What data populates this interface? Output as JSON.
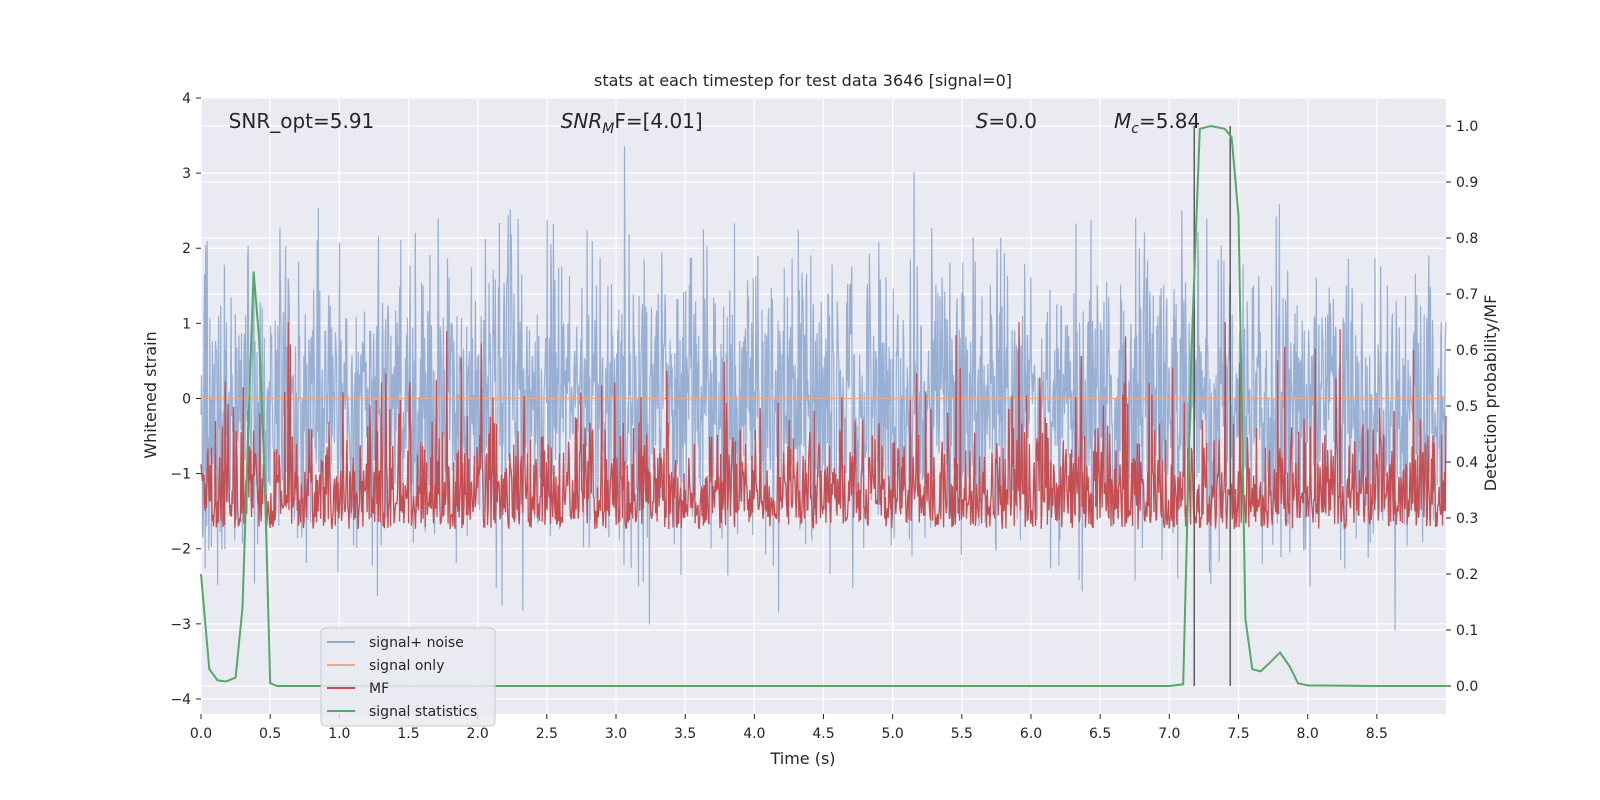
{
  "chart_data": {
    "type": "line",
    "title": "stats at each timestep for test data 3646 [signal=0]",
    "xlabel": "Time (s)",
    "ylabel_left": "Whitened strain",
    "ylabel_right": "Detection probability/MF",
    "xlim": [
      0,
      9.0
    ],
    "ylim_left": [
      -4.2,
      4
    ],
    "ylim_right": [
      -0.05,
      1.05
    ],
    "x_ticks": [
      "0.0",
      "0.5",
      "1.0",
      "1.5",
      "2.0",
      "2.5",
      "3.0",
      "3.5",
      "4.0",
      "4.5",
      "5.0",
      "5.5",
      "6.0",
      "6.5",
      "7.0",
      "7.5",
      "8.0",
      "8.5"
    ],
    "y_ticks_left": [
      "−4",
      "−3",
      "−2",
      "−1",
      "0",
      "1",
      "2",
      "3",
      "4"
    ],
    "y_ticks_right": [
      "0.0",
      "0.1",
      "0.2",
      "0.3",
      "0.4",
      "0.5",
      "0.6",
      "0.7",
      "0.8",
      "0.9",
      "1.0"
    ],
    "grid": true,
    "legend_position": "lower-left",
    "annotations": [
      {
        "text": "SNR_opt=5.91",
        "x": 0.2
      },
      {
        "text": "SNR",
        "sub": "M",
        "rest": "F=[4.01]",
        "x": 2.6
      },
      {
        "text": "S",
        "rest": "=0.0",
        "x": 5.6
      },
      {
        "text": "M",
        "sub": "c",
        "rest": "=5.84",
        "x": 6.6
      }
    ],
    "annotation_y": 3.6,
    "vertical_lines_x": [
      7.18,
      7.44
    ],
    "series": [
      {
        "name": "signal+ noise",
        "color": "#8fa8d0",
        "kind": "noise",
        "band": [
          -1.8,
          1.9
        ],
        "peak": [
          -3.8,
          3.6
        ]
      },
      {
        "name": "signal only",
        "color": "#e8a98a",
        "kind": "flat",
        "value": 0.0
      },
      {
        "name": "MF",
        "color": "#c44e52",
        "kind": "mf",
        "band": [
          0.03,
          0.65
        ]
      },
      {
        "name": "signal statistics",
        "color": "#55a868",
        "kind": "prob",
        "x": [
          0.0,
          0.06,
          0.12,
          0.18,
          0.25,
          0.3,
          0.35,
          0.38,
          0.42,
          0.46,
          0.5,
          0.55,
          0.6,
          1.0,
          2.0,
          3.0,
          4.0,
          5.0,
          6.0,
          6.5,
          7.0,
          7.1,
          7.16,
          7.22,
          7.3,
          7.4,
          7.45,
          7.5,
          7.55,
          7.6,
          7.66,
          7.72,
          7.8,
          7.87,
          7.93,
          8.0,
          8.5,
          9.0
        ],
        "y": [
          0.2,
          0.03,
          0.01,
          0.008,
          0.015,
          0.14,
          0.52,
          0.74,
          0.62,
          0.38,
          0.005,
          0.0,
          0.0,
          0.0,
          0.0,
          0.0,
          0.0,
          0.0,
          0.0,
          0.0,
          0.0,
          0.003,
          0.6,
          0.995,
          1.0,
          0.995,
          0.98,
          0.84,
          0.12,
          0.03,
          0.026,
          0.04,
          0.06,
          0.035,
          0.005,
          0.001,
          0.0,
          0.0
        ]
      }
    ]
  }
}
